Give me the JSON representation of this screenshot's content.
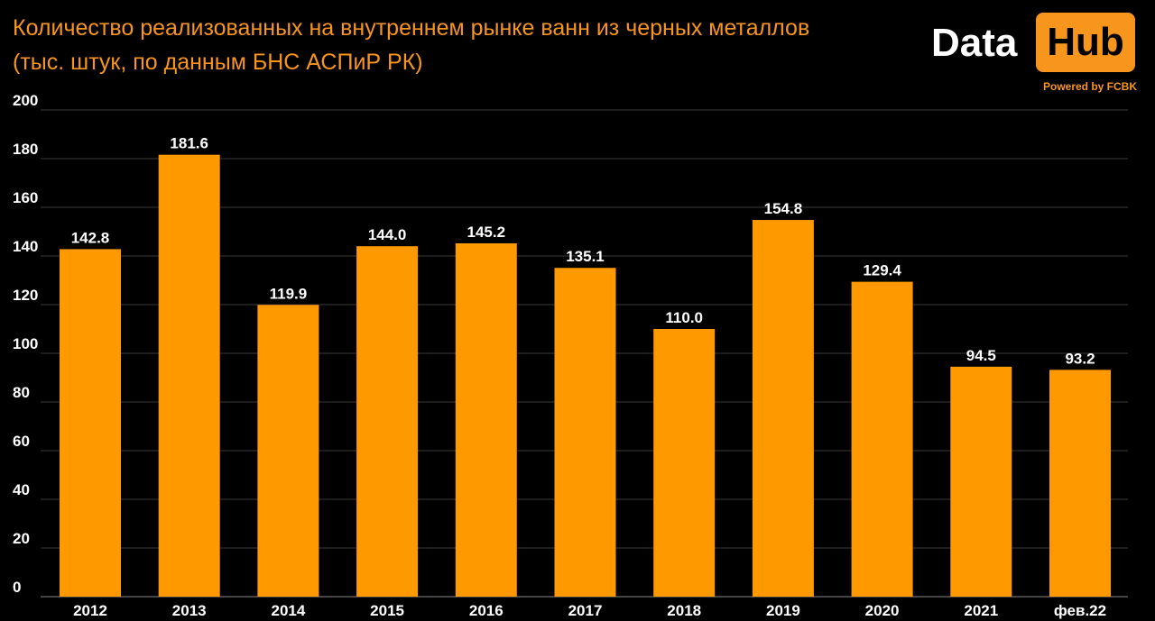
{
  "title": {
    "line1": "Количество реализованных на внутреннем рынке ванн из черных металлов",
    "line2": "(тыс. штук, по данным БНС АСПиР РК)"
  },
  "logo": {
    "part1": "Data",
    "part2": "Hub",
    "powered": "Powered by FCBK"
  },
  "colors": {
    "background": "#000000",
    "bar": "#ff9900",
    "title": "#f7951d",
    "grid": "#3a3a3a",
    "text": "#ffffff"
  },
  "chart_data": {
    "type": "bar",
    "categories": [
      "2012",
      "2013",
      "2014",
      "2015",
      "2016",
      "2017",
      "2018",
      "2019",
      "2020",
      "2021",
      "фев.22"
    ],
    "values": [
      142.8,
      181.6,
      119.9,
      144.0,
      145.2,
      135.1,
      110.0,
      154.8,
      129.4,
      94.5,
      93.2
    ],
    "data_labels": [
      "142.8",
      "181.6",
      "119.9",
      "144.0",
      "145.2",
      "135.1",
      "110.0",
      "154.8",
      "129.4",
      "94.5",
      "93.2"
    ],
    "yticks": [
      0,
      20,
      40,
      60,
      80,
      100,
      120,
      140,
      160,
      180,
      200
    ],
    "ylim": [
      0,
      200
    ],
    "grid": true,
    "legend": "none"
  }
}
